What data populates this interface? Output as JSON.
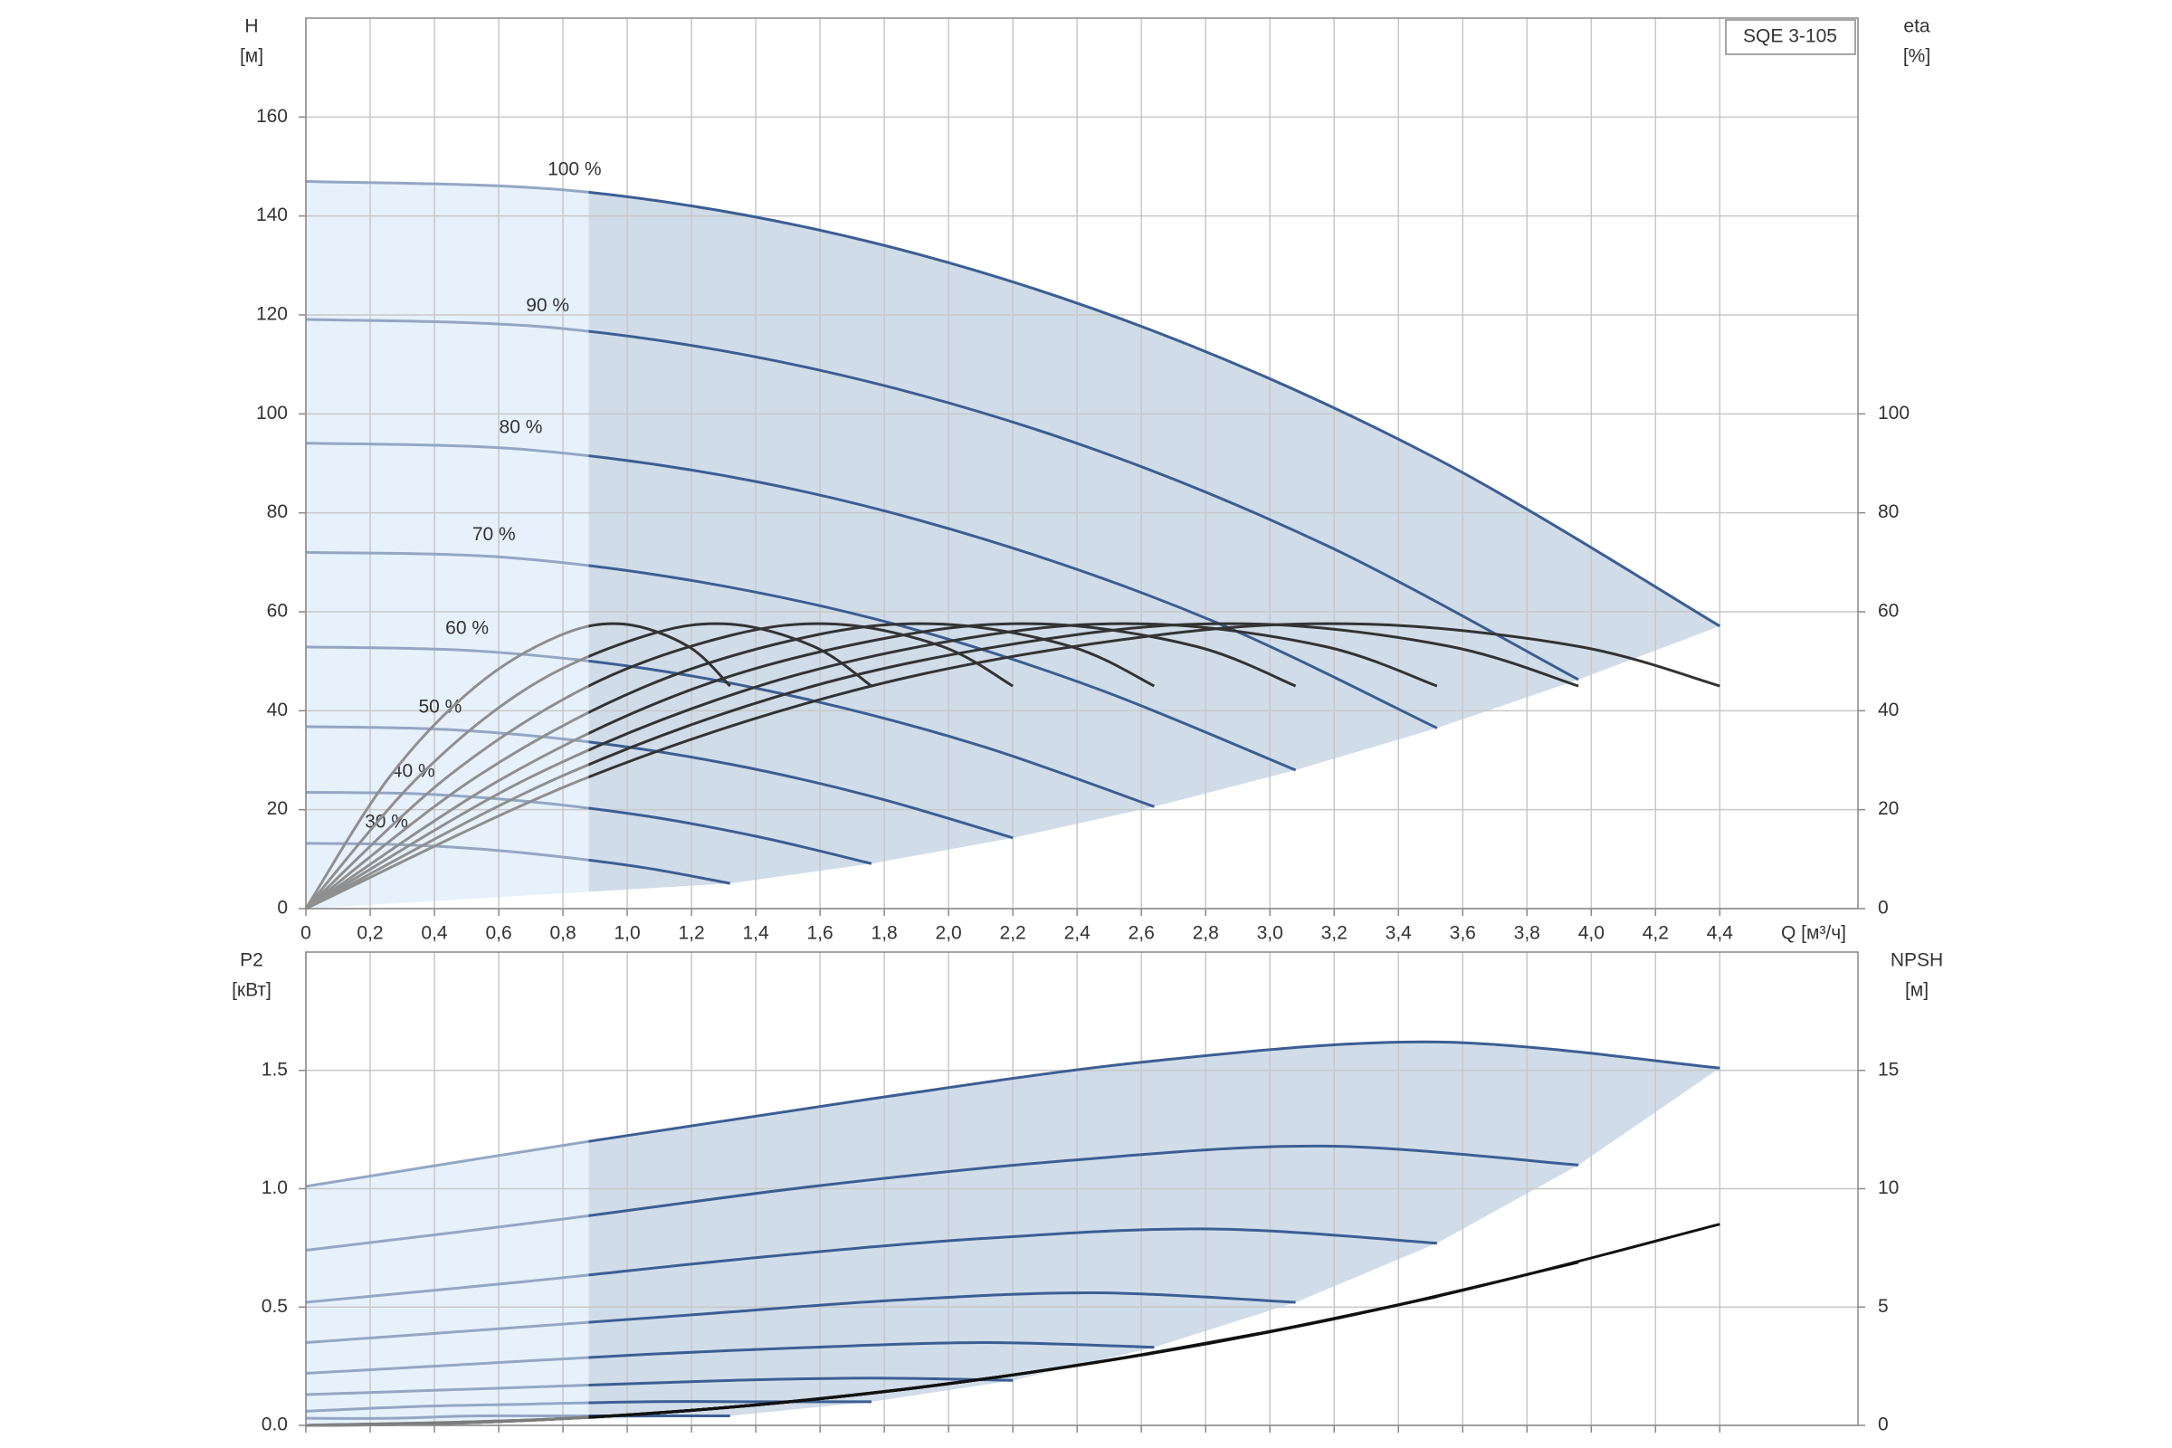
{
  "chart_data": [
    {
      "type": "line",
      "title": "SQE 3-105",
      "x_label": "Q [м³/ч]",
      "y_label": [
        "H",
        "[м]"
      ],
      "y2_label": [
        "eta",
        "[%]"
      ],
      "xlim": [
        0,
        4.83
      ],
      "ylim": [
        0,
        180
      ],
      "y2lim": [
        0,
        180
      ],
      "operating_range_start": 0.88,
      "xticks": [
        0,
        {
          "value": 0.2,
          "label": "0,2"
        },
        {
          "value": 0.4,
          "label": "0,4"
        },
        {
          "value": 0.6,
          "label": "0,6"
        },
        {
          "value": 0.8,
          "label": "0,8"
        },
        {
          "value": 1.0,
          "label": "1,0"
        },
        {
          "value": 1.2,
          "label": "1,2"
        },
        {
          "value": 1.4,
          "label": "1,4"
        },
        {
          "value": 1.6,
          "label": "1,6"
        },
        {
          "value": 1.8,
          "label": "1,8"
        },
        {
          "value": 2.0,
          "label": "2,0"
        },
        {
          "value": 2.2,
          "label": "2,2"
        },
        {
          "value": 2.4,
          "label": "2,4"
        },
        {
          "value": 2.6,
          "label": "2,6"
        },
        {
          "value": 2.8,
          "label": "2,8"
        },
        {
          "value": 3.0,
          "label": "3,0"
        },
        {
          "value": 3.2,
          "label": "3,2"
        },
        {
          "value": 3.4,
          "label": "3,4"
        },
        {
          "value": 3.6,
          "label": "3,6"
        },
        {
          "value": 3.8,
          "label": "3,8"
        },
        {
          "value": 4.0,
          "label": "4,0"
        },
        {
          "value": 4.2,
          "label": "4,2"
        },
        {
          "value": 4.4,
          "label": "4,4"
        }
      ],
      "yticks": [
        0,
        20,
        40,
        60,
        80,
        100,
        120,
        140,
        160
      ],
      "y2ticks": [
        0,
        20,
        40,
        60,
        80,
        100
      ],
      "series": [
        {
          "name": "100 %",
          "color": "#3b5e93",
          "x": [
            0,
            0.88,
            1.76,
            2.64,
            3.52,
            4.4
          ],
          "values": [
            147,
            144.8,
            134.7,
            116.7,
            90.9,
            57.1
          ]
        },
        {
          "name": "90 %",
          "color": "#3b5e93",
          "x": [
            0,
            0.79,
            1.58,
            2.38,
            3.17,
            3.96
          ],
          "values": [
            119.1,
            117.3,
            109.1,
            94.5,
            73.6,
            46.3
          ]
        },
        {
          "name": "80 %",
          "color": "#3b5e93",
          "x": [
            0,
            0.7,
            1.41,
            2.11,
            2.82,
            3.52
          ],
          "values": [
            94.1,
            92.7,
            86.2,
            74.7,
            58.2,
            36.5
          ]
        },
        {
          "name": "70 %",
          "color": "#3b5e93",
          "x": [
            0,
            0.62,
            1.23,
            1.85,
            2.46,
            3.08
          ],
          "values": [
            72.0,
            71.0,
            66.0,
            57.2,
            44.5,
            28.0
          ]
        },
        {
          "name": "60 %",
          "color": "#3b5e93",
          "x": [
            0,
            0.53,
            1.06,
            1.58,
            2.11,
            2.64
          ],
          "values": [
            52.9,
            52.1,
            48.5,
            42.0,
            32.7,
            20.6
          ]
        },
        {
          "name": "50 %",
          "color": "#3b5e93",
          "x": [
            0,
            0.44,
            0.88,
            1.32,
            1.76,
            2.2
          ],
          "values": [
            36.8,
            36.2,
            33.7,
            29.2,
            22.7,
            14.3
          ]
        },
        {
          "name": "40 %",
          "color": "#3b5e93",
          "x": [
            0,
            0.35,
            0.7,
            1.06,
            1.41,
            1.76
          ],
          "values": [
            23.5,
            23.2,
            21.6,
            18.7,
            14.5,
            9.1
          ]
        },
        {
          "name": "30 %",
          "color": "#3b5e93",
          "x": [
            0,
            0.26,
            0.53,
            0.79,
            1.06,
            1.32
          ],
          "values": [
            13.2,
            13.0,
            12.1,
            10.5,
            8.2,
            5.1
          ]
        },
        {
          "axis": "y2",
          "color": "#333333",
          "x": [
            0,
            0.88,
            1.76,
            2.64,
            3.3,
            3.96,
            4.4
          ],
          "values": [
            0,
            26.6,
            45.0,
            55.2,
            57.5,
            53.0,
            45.0
          ]
        },
        {
          "axis": "y2",
          "color": "#333333",
          "x": [
            0,
            0.79,
            1.58,
            2.38,
            2.97,
            3.56,
            3.96
          ],
          "values": [
            0,
            26.6,
            45.0,
            55.2,
            57.5,
            53.0,
            45.0
          ]
        },
        {
          "axis": "y2",
          "color": "#333333",
          "x": [
            0,
            0.7,
            1.41,
            2.11,
            2.64,
            3.17,
            3.52
          ],
          "values": [
            0,
            26.6,
            45.0,
            55.2,
            57.5,
            53.0,
            45.0
          ]
        },
        {
          "axis": "y2",
          "color": "#333333",
          "x": [
            0,
            0.62,
            1.23,
            1.85,
            2.31,
            2.77,
            3.08
          ],
          "values": [
            0,
            26.6,
            45.0,
            55.2,
            57.5,
            53.0,
            45.0
          ]
        },
        {
          "axis": "y2",
          "color": "#333333",
          "x": [
            0,
            0.53,
            1.06,
            1.58,
            1.98,
            2.38,
            2.64
          ],
          "values": [
            0,
            26.6,
            45.0,
            55.2,
            57.5,
            53.0,
            45.0
          ]
        },
        {
          "axis": "y2",
          "color": "#333333",
          "x": [
            0,
            0.44,
            0.88,
            1.32,
            1.65,
            1.98,
            2.2
          ],
          "values": [
            0,
            26.6,
            45.0,
            55.2,
            57.5,
            53.0,
            45.0
          ]
        },
        {
          "axis": "y2",
          "color": "#333333",
          "x": [
            0,
            0.35,
            0.7,
            1.06,
            1.32,
            1.58,
            1.76
          ],
          "values": [
            0,
            26.6,
            45.0,
            55.2,
            57.5,
            53.0,
            45.0
          ]
        },
        {
          "axis": "y2",
          "color": "#333333",
          "x": [
            0,
            0.26,
            0.53,
            0.79,
            0.99,
            1.19,
            1.32
          ],
          "values": [
            0,
            26.6,
            45.0,
            55.2,
            57.5,
            53.0,
            45.0
          ]
        }
      ]
    },
    {
      "type": "line",
      "y_label": [
        "P2",
        "[кВт]"
      ],
      "y2_label": [
        "NPSH",
        "[м]"
      ],
      "xlim": [
        0,
        4.83
      ],
      "ylim": [
        0,
        2.0
      ],
      "y2lim": [
        0,
        20
      ],
      "operating_range_start": 0.88,
      "yticks": [
        {
          "value": 0,
          "label": "0.0"
        },
        0.5,
        {
          "value": 1,
          "label": "1.0"
        },
        1.5
      ],
      "y2ticks": [
        0,
        5,
        10,
        15
      ],
      "series": [
        {
          "color": "#3b5e93",
          "x": [
            0,
            0.88,
            1.76,
            2.64,
            3.52,
            4.4
          ],
          "values": [
            1.01,
            1.2,
            1.38,
            1.54,
            1.62,
            1.51
          ]
        },
        {
          "color": "#3b5e93",
          "x": [
            0,
            0.79,
            1.58,
            2.38,
            3.17,
            3.96
          ],
          "values": [
            0.74,
            0.87,
            1.01,
            1.12,
            1.18,
            1.1
          ]
        },
        {
          "color": "#3b5e93",
          "x": [
            0,
            0.7,
            1.41,
            2.11,
            2.82,
            3.52
          ],
          "values": [
            0.52,
            0.61,
            0.71,
            0.79,
            0.83,
            0.77
          ]
        },
        {
          "color": "#3b5e93",
          "x": [
            0,
            0.62,
            1.23,
            1.85,
            2.46,
            3.08
          ],
          "values": [
            0.35,
            0.41,
            0.47,
            0.53,
            0.56,
            0.52
          ]
        },
        {
          "color": "#3b5e93",
          "x": [
            0,
            0.53,
            1.06,
            1.58,
            2.11,
            2.64
          ],
          "values": [
            0.22,
            0.26,
            0.3,
            0.33,
            0.35,
            0.33
          ]
        },
        {
          "color": "#3b5e93",
          "x": [
            0,
            0.44,
            0.88,
            1.32,
            1.76,
            2.2
          ],
          "values": [
            0.13,
            0.15,
            0.17,
            0.19,
            0.2,
            0.19
          ]
        },
        {
          "color": "#3b5e93",
          "x": [
            0,
            0.35,
            0.7,
            1.06,
            1.41,
            1.76
          ],
          "values": [
            0.06,
            0.08,
            0.09,
            0.1,
            0.1,
            0.1
          ]
        },
        {
          "color": "#3b5e93",
          "x": [
            0,
            0.26,
            0.53,
            0.79,
            1.06,
            1.32
          ],
          "values": [
            0.03,
            0.03,
            0.04,
            0.04,
            0.04,
            0.04
          ]
        },
        {
          "axis": "y2",
          "color": "#111111",
          "x": [
            0,
            0.88,
            1.76,
            2.64,
            3.52,
            4.4
          ],
          "values": [
            0,
            0.34,
            1.36,
            3.07,
            5.45,
            8.5
          ]
        },
        {
          "axis": "y2",
          "color": "#111111",
          "x": [
            0,
            0.79,
            1.58,
            2.38,
            3.17,
            3.96
          ],
          "values": [
            0,
            0.28,
            1.1,
            2.49,
            4.41,
            6.89
          ]
        },
        {
          "axis": "y2",
          "color": "#111111",
          "x": [
            0,
            0.7,
            1.41,
            2.11,
            2.82,
            3.52
          ],
          "values": [
            0,
            0.22,
            0.87,
            1.96,
            3.49,
            5.44
          ]
        },
        {
          "axis": "y2",
          "color": "#111111",
          "x": [
            0,
            0.62,
            1.23,
            1.85,
            2.46,
            3.08
          ],
          "values": [
            0,
            0.17,
            0.67,
            1.5,
            2.67,
            4.17
          ]
        },
        {
          "axis": "y2",
          "color": "#111111",
          "x": [
            0,
            0.53,
            1.06,
            1.58,
            2.11,
            2.64
          ],
          "values": [
            0,
            0.12,
            0.49,
            1.11,
            1.96,
            3.06
          ]
        },
        {
          "axis": "y2",
          "color": "#111111",
          "x": [
            0,
            0.44,
            0.88,
            1.32,
            1.76,
            2.2
          ],
          "values": [
            0,
            0.09,
            0.34,
            0.77,
            1.36,
            2.13
          ]
        },
        {
          "axis": "y2",
          "color": "#111111",
          "x": [
            0,
            0.35,
            0.7,
            1.06,
            1.41,
            1.76
          ],
          "values": [
            0,
            0.05,
            0.22,
            0.49,
            0.87,
            1.36
          ]
        },
        {
          "axis": "y2",
          "color": "#111111",
          "x": [
            0,
            0.26,
            0.53,
            0.79,
            1.06,
            1.32
          ],
          "values": [
            0,
            0.03,
            0.12,
            0.28,
            0.49,
            0.77
          ]
        }
      ]
    }
  ]
}
